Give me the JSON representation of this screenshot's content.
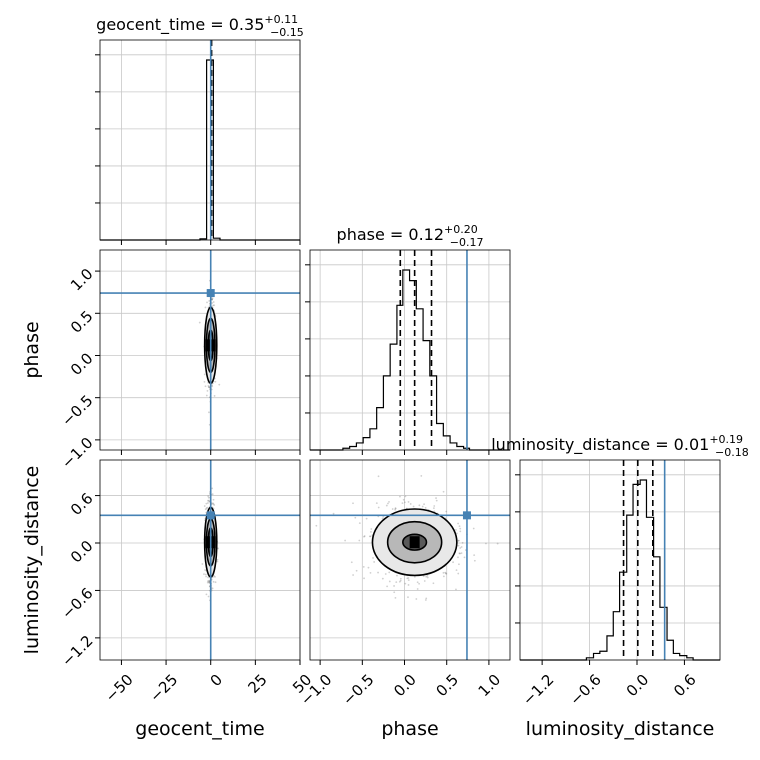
{
  "chart_data": {
    "type": "corner",
    "parameters": [
      "geocent_time",
      "phase",
      "luminosity_distance"
    ],
    "axis_labels": {
      "geocent_time": "geocent_time",
      "phase": "phase",
      "luminosity_distance": "luminosity_distance"
    },
    "ranges": {
      "geocent_time": [
        -62,
        50
      ],
      "phase": [
        -1.12,
        1.25
      ],
      "luminosity_distance": [
        -1.48,
        1.05
      ]
    },
    "ticks": {
      "geocent_time": {
        "values": [
          -50,
          -25,
          0,
          25,
          50
        ],
        "labels": [
          "−50",
          "−25",
          "0",
          "25",
          "50"
        ]
      },
      "phase": {
        "values": [
          -1.0,
          -0.5,
          0.0,
          0.5,
          1.0
        ],
        "labels": [
          "−1.0",
          "−0.5",
          "0.0",
          "0.5",
          "1.0"
        ]
      },
      "luminosity_distance": {
        "values": [
          -1.2,
          -0.6,
          0.0,
          0.6
        ],
        "labels": [
          "−1.2",
          "−0.6",
          "0.0",
          "0.6"
        ]
      }
    },
    "injection": {
      "geocent_time": 0,
      "phase": 0.74,
      "luminosity_distance": 0.35
    },
    "injection_color": "#4682b4",
    "grid": true,
    "marginals": [
      {
        "parameter": "geocent_time",
        "title_main": "geocent_time = 0.35",
        "title_sup": "+0.11",
        "title_sub": "−0.15",
        "quantiles": [
          0.2,
          0.35,
          0.46
        ],
        "bin_edges": [
          -62,
          -58.3,
          -54.5,
          -50.8,
          -47.1,
          -43.3,
          -39.6,
          -35.9,
          -32.1,
          -28.4,
          -24.7,
          -20.9,
          -17.2,
          -13.5,
          -9.7,
          -6,
          -2.3,
          1.5,
          5.2,
          8.9,
          12.7,
          16.4,
          20.1,
          23.9,
          27.6,
          31.3,
          35.1,
          38.8,
          42.5,
          46.3,
          50
        ],
        "counts": [
          0,
          0,
          0,
          0,
          0,
          0,
          0,
          0,
          0,
          0,
          0,
          0,
          0,
          0,
          0,
          3,
          490,
          5,
          0,
          0,
          0,
          0,
          0,
          0,
          0,
          0,
          0,
          0,
          0,
          0
        ]
      },
      {
        "parameter": "phase",
        "title_main": "phase = 0.12",
        "title_sup": "+0.20",
        "title_sub": "−0.17",
        "quantiles": [
          -0.05,
          0.12,
          0.32
        ],
        "bin_edges": [
          -1.12,
          -1.04,
          -0.96,
          -0.88,
          -0.81,
          -0.73,
          -0.65,
          -0.57,
          -0.49,
          -0.41,
          -0.33,
          -0.25,
          -0.17,
          -0.09,
          -0.02,
          0.06,
          0.14,
          0.22,
          0.3,
          0.38,
          0.46,
          0.54,
          0.62,
          0.7,
          0.77,
          0.85,
          0.93,
          1.01,
          1.09,
          1.17,
          1.25
        ],
        "counts": [
          0,
          0,
          0,
          0,
          0,
          1,
          2,
          4,
          7,
          12,
          24,
          42,
          60,
          82,
          102,
          96,
          80,
          62,
          42,
          15,
          8,
          4,
          2,
          1,
          0,
          0,
          0,
          0,
          0,
          0
        ]
      },
      {
        "parameter": "luminosity_distance",
        "title_main": "luminosity_distance = 0.01",
        "title_sup": "+0.19",
        "title_sub": "−0.18",
        "quantiles": [
          -0.17,
          0.01,
          0.2
        ],
        "bin_edges": [
          -1.48,
          -1.4,
          -1.31,
          -1.23,
          -1.14,
          -1.06,
          -0.97,
          -0.89,
          -0.81,
          -0.72,
          -0.64,
          -0.55,
          -0.47,
          -0.38,
          -0.3,
          -0.22,
          -0.13,
          -0.05,
          0.04,
          0.12,
          0.21,
          0.29,
          0.38,
          0.46,
          0.54,
          0.63,
          0.71,
          0.8,
          0.88,
          0.97,
          1.05
        ],
        "counts": [
          0,
          0,
          0,
          0,
          0,
          0,
          0,
          0,
          0,
          0,
          1,
          3,
          4,
          11,
          22,
          40,
          66,
          80,
          82,
          65,
          47,
          24,
          9,
          3,
          2,
          1,
          0,
          0,
          0,
          0
        ]
      }
    ],
    "joint": [
      {
        "x": "geocent_time",
        "y": "phase",
        "center": [
          0,
          0.12
        ],
        "sigma": [
          0.8,
          0.18
        ],
        "contour_levels": [
          [
            1.3,
            0.18
          ],
          [
            2.4,
            0.32
          ],
          [
            3.4,
            0.45
          ]
        ]
      },
      {
        "x": "geocent_time",
        "y": "luminosity_distance",
        "center": [
          0,
          0.01
        ],
        "sigma": [
          0.8,
          0.18
        ],
        "contour_levels": [
          [
            1.3,
            0.18
          ],
          [
            2.4,
            0.3
          ],
          [
            3.4,
            0.44
          ]
        ]
      },
      {
        "x": "phase",
        "y": "luminosity_distance",
        "center": [
          0.12,
          0.01
        ],
        "sigma": [
          0.18,
          0.18
        ],
        "contour_levels": [
          [
            0.14,
            0.1
          ],
          [
            0.32,
            0.26
          ],
          [
            0.5,
            0.42
          ]
        ]
      }
    ]
  }
}
